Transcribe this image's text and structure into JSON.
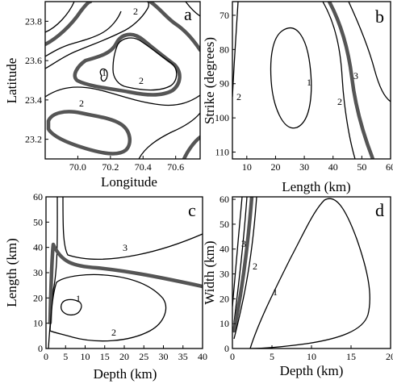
{
  "chart_data": [
    {
      "type": "contour",
      "panel": "a",
      "xlabel": "Longitude",
      "ylabel": "Latitude",
      "xlim": [
        69.8,
        70.75
      ],
      "ylim": [
        23.1,
        23.9
      ],
      "xticks": [
        "70.0",
        "70.2",
        "70.4",
        "70.6"
      ],
      "yticks": [
        "23.2",
        "23.4",
        "23.6",
        "23.8"
      ],
      "contour_labels": [
        "1",
        "2",
        "2",
        "2"
      ],
      "thick_contour_color": "#555555"
    },
    {
      "type": "contour",
      "panel": "b",
      "xlabel": "Length (km)",
      "ylabel": "Strike (degrees)",
      "xlim": [
        5,
        60
      ],
      "ylim": [
        112,
        66
      ],
      "xticks": [
        "10",
        "20",
        "30",
        "40",
        "50",
        "60"
      ],
      "yticks": [
        "70",
        "80",
        "90",
        "100",
        "110"
      ],
      "contour_labels": [
        "1",
        "2",
        "2",
        "3"
      ]
    },
    {
      "type": "contour",
      "panel": "c",
      "xlabel": "Depth (km)",
      "ylabel": "Length (km)",
      "xlim": [
        0,
        40
      ],
      "ylim": [
        0,
        60
      ],
      "xticks": [
        "0",
        "5",
        "10",
        "15",
        "20",
        "25",
        "30",
        "35",
        "40"
      ],
      "yticks": [
        "0",
        "10",
        "20",
        "30",
        "40",
        "50",
        "60"
      ],
      "contour_labels": [
        "1",
        "2",
        "3"
      ]
    },
    {
      "type": "contour",
      "panel": "d",
      "xlabel": "Depth (km)",
      "ylabel": "Width (km)",
      "xlim": [
        0,
        20
      ],
      "ylim": [
        0,
        61
      ],
      "xticks": [
        "0",
        "5",
        "10",
        "15",
        "20"
      ],
      "yticks": [
        "0",
        "10",
        "20",
        "30",
        "40",
        "50",
        "60"
      ],
      "contour_labels": [
        "1",
        "2",
        "3"
      ]
    }
  ]
}
